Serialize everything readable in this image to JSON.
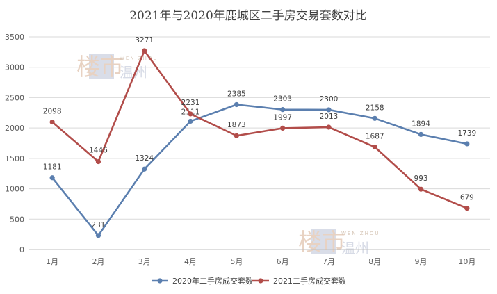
{
  "chart_data": {
    "type": "line",
    "title": "2021年与2020年鹿城区二手房交易套数对比",
    "categories": [
      "1月",
      "2月",
      "3月",
      "4月",
      "5月",
      "6月",
      "7月",
      "8月",
      "9月",
      "10月"
    ],
    "ylim": [
      0,
      3500
    ],
    "yticks": [
      0,
      500,
      1000,
      1500,
      2000,
      2500,
      3000,
      3500
    ],
    "grid": true,
    "legend": "bottom",
    "series": [
      {
        "name": "2020年二手房成交套数",
        "color": "#5b7faf",
        "values": [
          1181,
          231,
          1324,
          2111,
          2385,
          2303,
          2300,
          2158,
          1894,
          1739
        ]
      },
      {
        "name": "2021二手房成交套数",
        "color": "#b24d4a",
        "values": [
          2098,
          1446,
          3271,
          2231,
          1873,
          1997,
          2013,
          1687,
          993,
          679
        ]
      }
    ]
  },
  "watermark": {
    "glyphs": "楼市",
    "latin": "WEN ZHOU",
    "city": "温州",
    "icon": "loushi-wenzhou-logo"
  }
}
